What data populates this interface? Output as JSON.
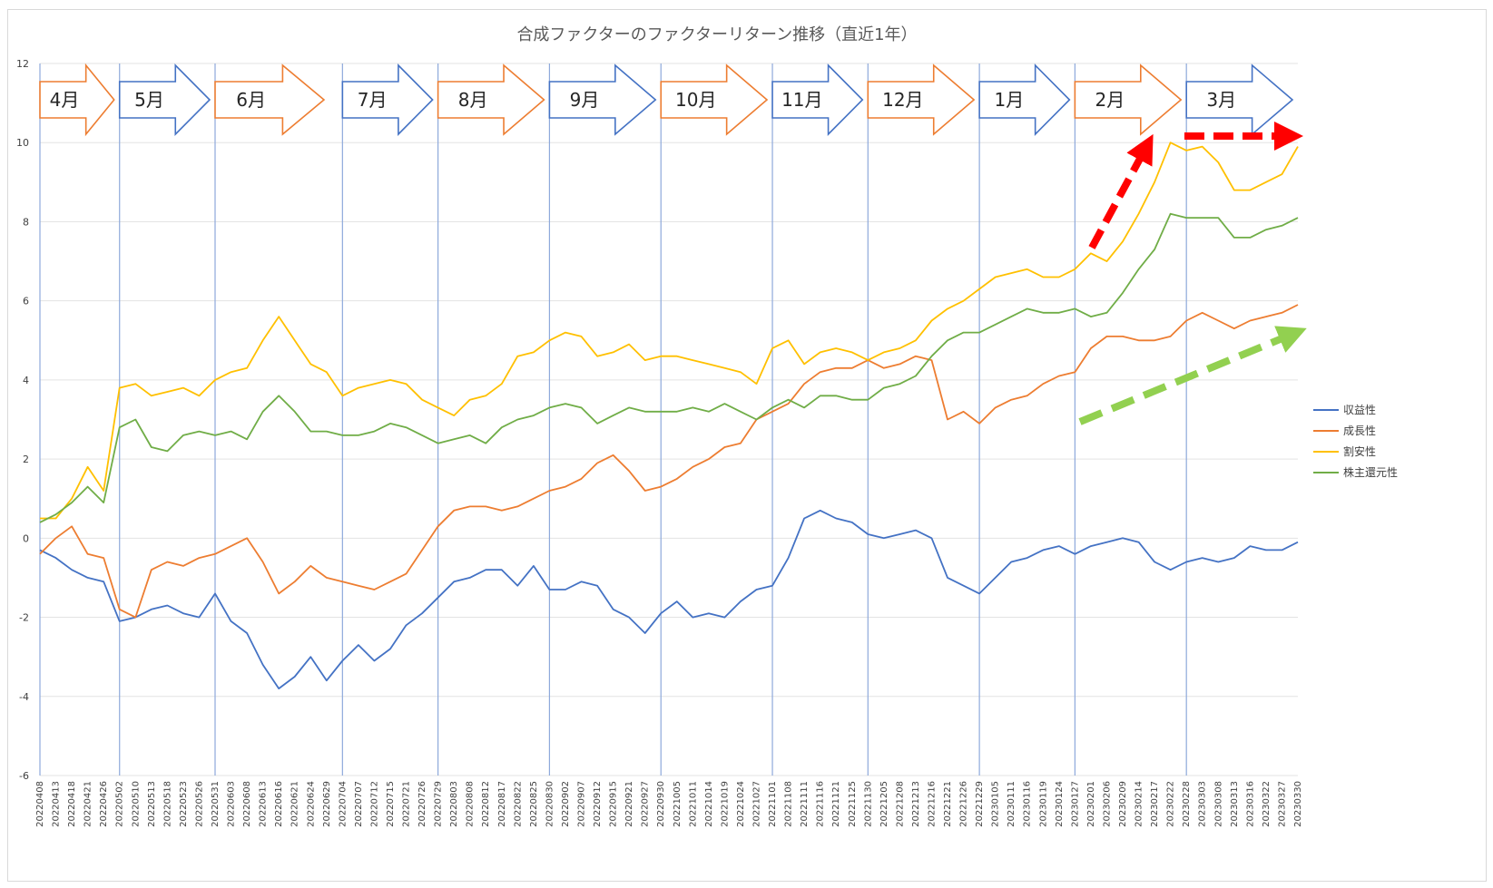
{
  "chart_data": {
    "type": "line",
    "title": "合成ファクターのファクターリターン推移（直近1年）",
    "xlabel": "",
    "ylabel": "",
    "ylim": [
      -6,
      12
    ],
    "yticks": [
      -6,
      -4,
      -2,
      0,
      2,
      4,
      6,
      8,
      10,
      12
    ],
    "grid": true,
    "legend_position": "right",
    "x_tick_labels": [
      "20220408",
      "20220413",
      "20220418",
      "20220421",
      "20220426",
      "20220502",
      "20220510",
      "20220513",
      "20220518",
      "20220523",
      "20220526",
      "20220531",
      "20220603",
      "20220608",
      "20220613",
      "20220616",
      "20220621",
      "20220624",
      "20220629",
      "20220704",
      "20220707",
      "20220712",
      "20220715",
      "20220721",
      "20220726",
      "20220729",
      "20220803",
      "20220808",
      "20220812",
      "20220817",
      "20220822",
      "20220825",
      "20220830",
      "20220902",
      "20220907",
      "20220912",
      "20220915",
      "20220921",
      "20220927",
      "20220930",
      "20221005",
      "20221011",
      "20221014",
      "20221019",
      "20221024",
      "20221027",
      "20221101",
      "20221108",
      "20221111",
      "20221116",
      "20221121",
      "20221125",
      "20221130",
      "20221205",
      "20221208",
      "20221213",
      "20221216",
      "20221221",
      "20221226",
      "20221229",
      "20230105",
      "20230111",
      "20230116",
      "20230119",
      "20230124",
      "20230127",
      "20230201",
      "20230206",
      "20230209",
      "20230214",
      "20230217",
      "20230222",
      "20230228",
      "20230303",
      "20230308",
      "20230313",
      "20230316",
      "20230322",
      "20230327",
      "20230330"
    ],
    "month_labels": [
      {
        "label": "4月",
        "start_index": 0,
        "color": "#ED7D31"
      },
      {
        "label": "5月",
        "start_index": 5,
        "color": "#4472C4"
      },
      {
        "label": "6月",
        "start_index": 11,
        "color": "#ED7D31"
      },
      {
        "label": "7月",
        "start_index": 19,
        "color": "#4472C4"
      },
      {
        "label": "8月",
        "start_index": 25,
        "color": "#ED7D31"
      },
      {
        "label": "9月",
        "start_index": 32,
        "color": "#4472C4"
      },
      {
        "label": "10月",
        "start_index": 39,
        "color": "#ED7D31"
      },
      {
        "label": "11月",
        "start_index": 46,
        "color": "#4472C4"
      },
      {
        "label": "12月",
        "start_index": 52,
        "color": "#ED7D31"
      },
      {
        "label": "1月",
        "start_index": 59,
        "color": "#4472C4"
      },
      {
        "label": "2月",
        "start_index": 65,
        "color": "#ED7D31"
      },
      {
        "label": "3月",
        "start_index": 72,
        "color": "#4472C4"
      }
    ],
    "series": [
      {
        "name": "収益性",
        "color": "#4472C4",
        "values": [
          -0.3,
          -0.5,
          -0.8,
          -1.0,
          -1.1,
          -2.1,
          -2.0,
          -1.8,
          -1.7,
          -1.9,
          -2.0,
          -1.4,
          -2.1,
          -2.4,
          -3.2,
          -3.8,
          -3.5,
          -3.0,
          -3.6,
          -3.1,
          -2.7,
          -3.1,
          -2.8,
          -2.2,
          -1.9,
          -1.5,
          -1.1,
          -1.0,
          -0.8,
          -0.8,
          -1.2,
          -0.7,
          -1.3,
          -1.3,
          -1.1,
          -1.2,
          -1.8,
          -2.0,
          -2.4,
          -1.9,
          -1.6,
          -2.0,
          -1.9,
          -2.0,
          -1.6,
          -1.3,
          -1.2,
          -0.5,
          0.5,
          0.7,
          0.5,
          0.4,
          0.1,
          0.0,
          0.1,
          0.2,
          0.0,
          -1.0,
          -1.2,
          -1.4,
          -1.0,
          -0.6,
          -0.5,
          -0.3,
          -0.2,
          -0.4,
          -0.2,
          -0.1,
          0.0,
          -0.1,
          -0.6,
          -0.8,
          -0.6,
          -0.5,
          -0.6,
          -0.5,
          -0.2,
          -0.3,
          -0.3,
          -0.1
        ]
      },
      {
        "name": "成長性",
        "color": "#ED7D31",
        "values": [
          -0.4,
          0.0,
          0.3,
          -0.4,
          -0.5,
          -1.8,
          -2.0,
          -0.8,
          -0.6,
          -0.7,
          -0.5,
          -0.4,
          -0.2,
          0.0,
          -0.6,
          -1.4,
          -1.1,
          -0.7,
          -1.0,
          -1.1,
          -1.2,
          -1.3,
          -1.1,
          -0.9,
          -0.3,
          0.3,
          0.7,
          0.8,
          0.8,
          0.7,
          0.8,
          1.0,
          1.2,
          1.3,
          1.5,
          1.9,
          2.1,
          1.7,
          1.2,
          1.3,
          1.5,
          1.8,
          2.0,
          2.3,
          2.4,
          3.0,
          3.2,
          3.4,
          3.9,
          4.2,
          4.3,
          4.3,
          4.5,
          4.3,
          4.4,
          4.6,
          4.5,
          3.0,
          3.2,
          2.9,
          3.3,
          3.5,
          3.6,
          3.9,
          4.1,
          4.2,
          4.8,
          5.1,
          5.1,
          5.0,
          5.0,
          5.1,
          5.5,
          5.7,
          5.5,
          5.3,
          5.5,
          5.6,
          5.7,
          5.9
        ]
      },
      {
        "name": "割安性",
        "color": "#FFC000",
        "values": [
          0.5,
          0.5,
          1.0,
          1.8,
          1.2,
          3.8,
          3.9,
          3.6,
          3.7,
          3.8,
          3.6,
          4.0,
          4.2,
          4.3,
          5.0,
          5.6,
          5.0,
          4.4,
          4.2,
          3.6,
          3.8,
          3.9,
          4.0,
          3.9,
          3.5,
          3.3,
          3.1,
          3.5,
          3.6,
          3.9,
          4.6,
          4.7,
          5.0,
          5.2,
          5.1,
          4.6,
          4.7,
          4.9,
          4.5,
          4.6,
          4.6,
          4.5,
          4.4,
          4.3,
          4.2,
          3.9,
          4.8,
          5.0,
          4.4,
          4.7,
          4.8,
          4.7,
          4.5,
          4.7,
          4.8,
          5.0,
          5.5,
          5.8,
          6.0,
          6.3,
          6.6,
          6.7,
          6.8,
          6.6,
          6.6,
          6.8,
          7.2,
          7.0,
          7.5,
          8.2,
          9.0,
          10.0,
          9.8,
          9.9,
          9.5,
          8.8,
          8.8,
          9.0,
          9.2,
          9.9
        ]
      },
      {
        "name": "株主還元性",
        "color": "#70AD47",
        "values": [
          0.4,
          0.6,
          0.9,
          1.3,
          0.9,
          2.8,
          3.0,
          2.3,
          2.2,
          2.6,
          2.7,
          2.6,
          2.7,
          2.5,
          3.2,
          3.6,
          3.2,
          2.7,
          2.7,
          2.6,
          2.6,
          2.7,
          2.9,
          2.8,
          2.6,
          2.4,
          2.5,
          2.6,
          2.4,
          2.8,
          3.0,
          3.1,
          3.3,
          3.4,
          3.3,
          2.9,
          3.1,
          3.3,
          3.2,
          3.2,
          3.2,
          3.3,
          3.2,
          3.4,
          3.2,
          3.0,
          3.3,
          3.5,
          3.3,
          3.6,
          3.6,
          3.5,
          3.5,
          3.8,
          3.9,
          4.1,
          4.6,
          5.0,
          5.2,
          5.2,
          5.4,
          5.6,
          5.8,
          5.7,
          5.7,
          5.8,
          5.6,
          5.7,
          6.2,
          6.8,
          7.3,
          8.2,
          8.1,
          8.1,
          8.1,
          7.6,
          7.6,
          7.8,
          7.9,
          8.1
        ]
      }
    ]
  }
}
